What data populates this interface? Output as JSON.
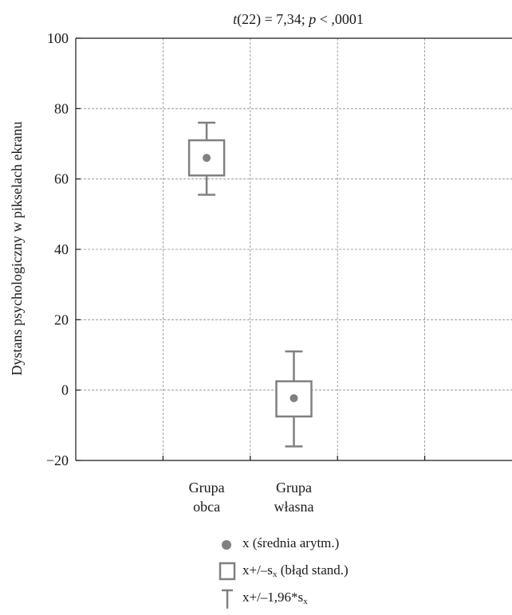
{
  "chart_data": {
    "type": "box",
    "title": {
      "stat": "t",
      "df": "(22) = 7,34; ",
      "p": "p",
      "rest": " < ,0001"
    },
    "ylabel": "Dystans psychologiczny w pikselach ekranu",
    "ylim": [
      -20,
      100
    ],
    "yticks": [
      -20,
      0,
      20,
      40,
      60,
      80,
      100
    ],
    "ytick_labels": [
      "−20",
      "0",
      "20",
      "40",
      "60",
      "80",
      "100"
    ],
    "x_slots": 5,
    "grid": true,
    "groups": [
      {
        "label_line1": "Grupa",
        "label_line2": "obca",
        "slot": 2,
        "mean": 66,
        "se_low": 61,
        "se_high": 71,
        "ci_low": 55.5,
        "ci_high": 76
      },
      {
        "label_line1": "Grupa",
        "label_line2": "własna",
        "slot": 3,
        "mean": -2.3,
        "se_low": -7.5,
        "se_high": 2.5,
        "ci_low": -16,
        "ci_high": 11
      }
    ],
    "style": {
      "element_color": "#808080",
      "axis_color": "#1a1a1a",
      "grid_color": "#8a8a8a"
    }
  },
  "legend": {
    "mean": {
      "x": "x",
      "text": " (średnia arytm.)"
    },
    "se": {
      "x": "x",
      "pm": "+/–s",
      "sub": "x",
      "text": " (błąd stand.)"
    },
    "ci": {
      "x": "x",
      "pm": "+/–1,96*s",
      "sub": "x"
    }
  }
}
